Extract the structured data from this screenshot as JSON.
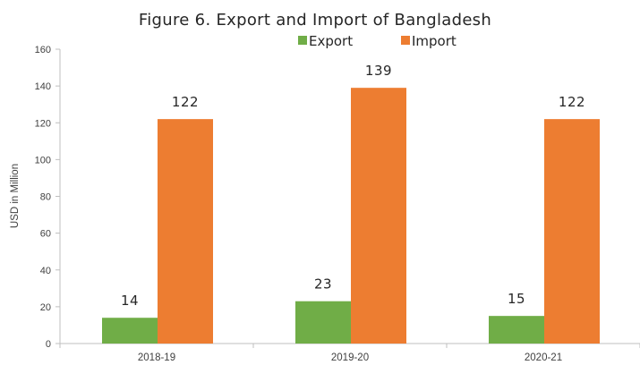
{
  "chart_data": {
    "type": "bar",
    "title": "Figure 6. Export and Import of Bangladesh",
    "xlabel": "",
    "ylabel": "USD in Million",
    "categories": [
      "2018-19",
      "2019-20",
      "2020-21"
    ],
    "series": [
      {
        "name": "Export",
        "color": "#70AD47",
        "values": [
          14,
          23,
          15
        ],
        "labels": [
          "14",
          "23",
          "15"
        ]
      },
      {
        "name": "Import",
        "color": "#ED7D31",
        "values": [
          122,
          139,
          122
        ],
        "labels": [
          "122",
          "139",
          "122"
        ]
      }
    ],
    "ylim": [
      0,
      160
    ],
    "yticks": [
      0,
      20,
      40,
      60,
      80,
      100,
      120,
      140,
      160
    ],
    "grid": false,
    "legend": "top-center"
  }
}
